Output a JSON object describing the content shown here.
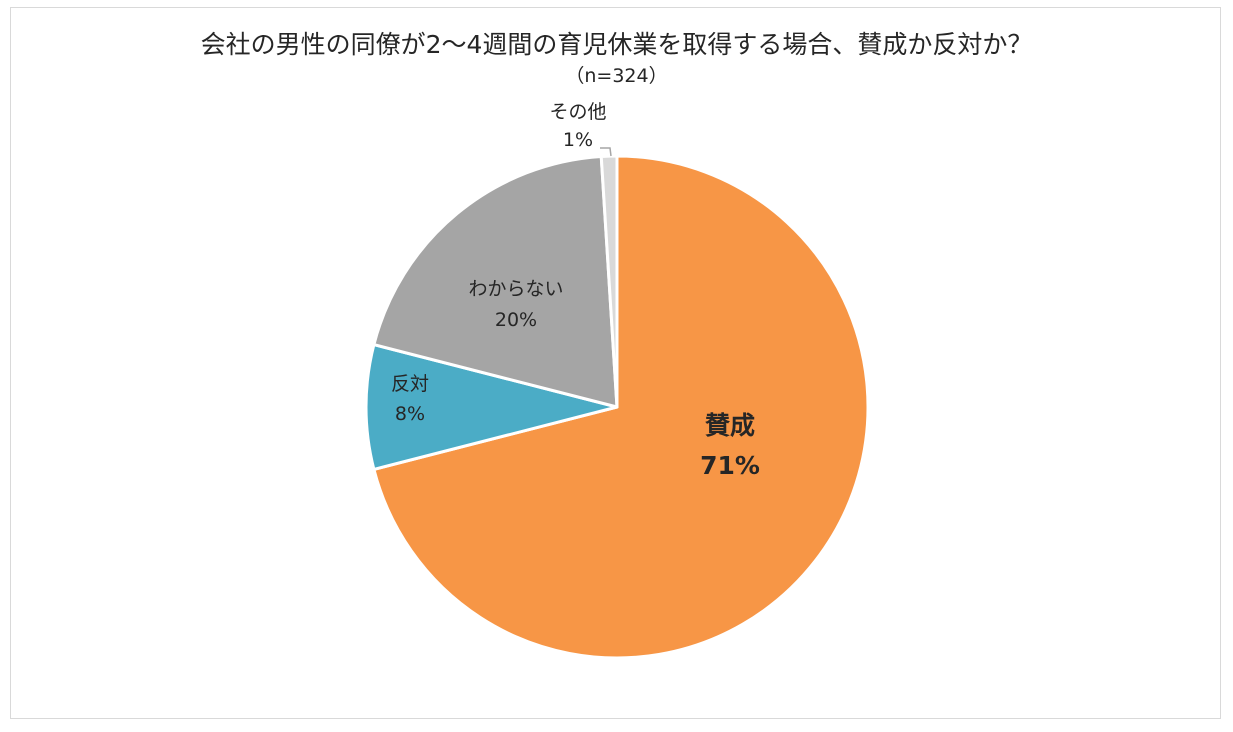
{
  "chart_data": {
    "type": "pie",
    "title": "会社の男性の同僚が2～4週間の育児休業を取得する場合、賛成か反対か？",
    "subtitle": "（n=324）",
    "start_angle_deg": 0,
    "direction": "clockwise",
    "slices": [
      {
        "label": "賛成",
        "value": 71,
        "value_label": "71%",
        "color": "#F79646"
      },
      {
        "label": "反対",
        "value": 8,
        "value_label": "8%",
        "color": "#4BACC6"
      },
      {
        "label": "わからない",
        "value": 20,
        "value_label": "20%",
        "color": "#A5A5A5"
      },
      {
        "label": "その他",
        "value": 1,
        "value_label": "1%",
        "color": "#D9D9D9"
      }
    ]
  }
}
